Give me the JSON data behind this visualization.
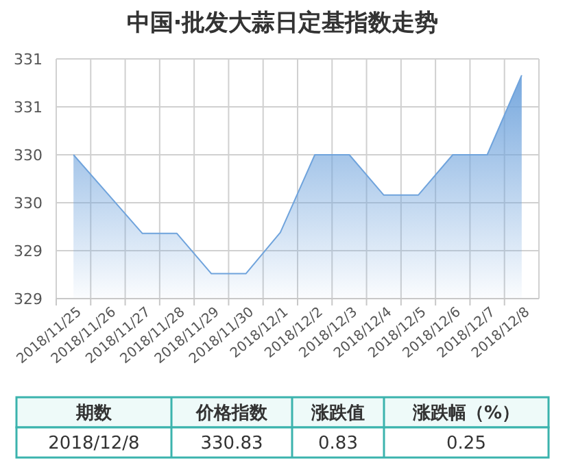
{
  "chart_data": {
    "type": "area",
    "title": "中国·批发大蒜日定基指数走势",
    "categories": [
      "2018/11/25",
      "2018/11/26",
      "2018/11/27",
      "2018/11/28",
      "2018/11/29",
      "2018/11/30",
      "2018/12/1",
      "2018/12/2",
      "2018/12/3",
      "2018/12/4",
      "2018/12/5",
      "2018/12/6",
      "2018/12/7",
      "2018/12/8"
    ],
    "series": [
      {
        "color": "#6fa3dc",
        "values": [
          330.0,
          329.59,
          329.18,
          329.18,
          328.76,
          328.76,
          329.19,
          330.0,
          330.0,
          329.58,
          329.58,
          330.0,
          330.0,
          330.83
        ]
      }
    ],
    "ylim": [
      328.5,
      331
    ],
    "yticks": [
      {
        "value": 328.5,
        "label": "329"
      },
      329,
      {
        "value": 329.5,
        "label": "330"
      },
      330,
      {
        "value": 330.5,
        "label": "331"
      },
      331
    ],
    "grid": true,
    "marker": "none",
    "annotations": [
      "期数",
      "价格指数",
      "涨跌值",
      "涨跌幅（%）",
      "2018/12/8",
      "330.83",
      "0.83",
      "0.25"
    ]
  }
}
